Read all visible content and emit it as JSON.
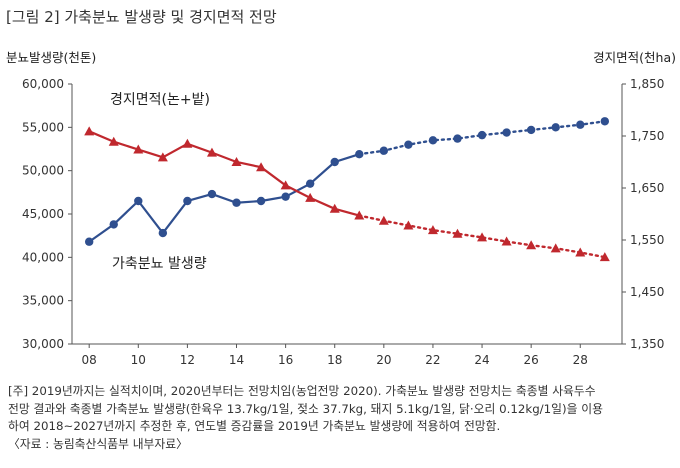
{
  "figure": {
    "title": "[그림 2] 가축분뇨 발생량 및 경지면적 전망"
  },
  "chart_data": {
    "type": "line",
    "x": [
      8,
      9,
      10,
      11,
      12,
      13,
      14,
      15,
      16,
      17,
      18,
      19,
      20,
      21,
      22,
      23,
      24,
      25,
      26,
      27,
      28,
      29
    ],
    "x_ticks": [
      "08",
      "10",
      "12",
      "14",
      "16",
      "18",
      "20",
      "22",
      "24",
      "26",
      "28"
    ],
    "x_tick_values": [
      8,
      10,
      12,
      14,
      16,
      18,
      20,
      22,
      24,
      26,
      28
    ],
    "xlim": [
      7.3,
      29.7
    ],
    "projection_start": 19,
    "y_left": {
      "label": "분뇨발생량(천톤)",
      "lim": [
        30000,
        60000
      ],
      "ticks": [
        "30,000",
        "35,000",
        "40,000",
        "45,000",
        "50,000",
        "55,000",
        "60,000"
      ],
      "tick_values": [
        30000,
        35000,
        40000,
        45000,
        50000,
        55000,
        60000
      ]
    },
    "y_right": {
      "label": "경지면적(천ha)",
      "lim": [
        1350,
        1850
      ],
      "ticks": [
        "1,350",
        "1,450",
        "1,550",
        "1,650",
        "1,750",
        "1,850"
      ],
      "tick_values": [
        1350,
        1450,
        1550,
        1650,
        1750,
        1850
      ]
    },
    "series": [
      {
        "name": "가축분뇨 발생량",
        "axis": "left",
        "marker": "circle",
        "color": "#2f4f8f",
        "values": [
          41800,
          43800,
          46500,
          42800,
          46500,
          47300,
          46300,
          46500,
          47000,
          48500,
          51000,
          51900,
          52300,
          53000,
          53500,
          53700,
          54100,
          54400,
          54700,
          55000,
          55300,
          55700
        ]
      },
      {
        "name": "경지면적(논+밭)",
        "axis": "right",
        "marker": "triangle",
        "color": "#c0282e",
        "values": [
          1759,
          1739,
          1724,
          1709,
          1735,
          1718,
          1700,
          1690,
          1655,
          1631,
          1610,
          1597,
          1587,
          1578,
          1569,
          1562,
          1555,
          1547,
          1540,
          1534,
          1526,
          1517
        ]
      }
    ],
    "grid": false
  },
  "notes": {
    "line1": "[주] 2019년까지는 실적치이며, 2020년부터는 전망치임(농업전망 2020). 가축분뇨 발생량 전망치는 축종별 사육두수",
    "line2": "전망 결과와 축종별 가축분뇨 발생량(한육우 13.7kg/1일, 젖소 37.7kg, 돼지 5.1kg/1일, 닭·오리 0.12kg/1일)을 이용",
    "line3": "하여 2018~2027년까지 추정한 후, 연도별 증감률을 2019년 가축분뇨 발생량에 적용하여 전망함.",
    "source": "〈자료 : 농림축산식품부 내부자료〉"
  }
}
